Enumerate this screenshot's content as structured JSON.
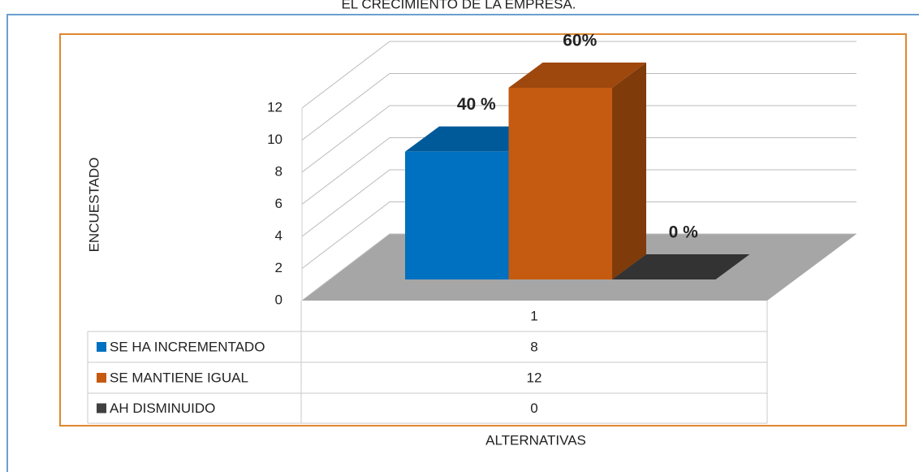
{
  "chart_data": {
    "type": "bar3d",
    "title": "EL CRECIMIENTO DE LA EMPRESA.",
    "y_label": "ENCUESTADO",
    "x_label": "ALTERNATIVAS",
    "categories": [
      "1"
    ],
    "series": [
      {
        "name": "SE HA INCREMENTADO",
        "color": "#0070c0",
        "values": [
          8
        ],
        "value_labels": [
          "40 %"
        ]
      },
      {
        "name": "SE MANTIENE IGUAL",
        "color": "#c55a11",
        "values": [
          12
        ],
        "value_labels": [
          "60%"
        ]
      },
      {
        "name": "AH DISMINUIDO",
        "color": "#404040",
        "values": [
          0
        ],
        "value_labels": [
          "0 %"
        ]
      }
    ],
    "ylim": [
      0,
      12
    ],
    "yticks": [
      0,
      2,
      4,
      6,
      8,
      10,
      12
    ],
    "grid": true
  }
}
